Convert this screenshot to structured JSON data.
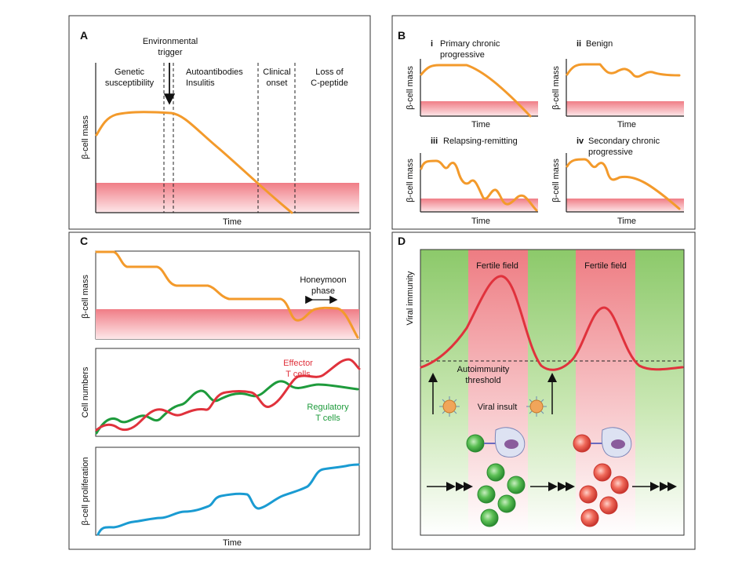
{
  "panelA": {
    "letter": "A",
    "trigger": [
      "Environmental",
      "trigger"
    ],
    "stage1": [
      "Genetic",
      "susceptibility"
    ],
    "stage2": [
      "Autoantibodies",
      "Insulitis"
    ],
    "stage3": [
      "Clinical",
      "onset"
    ],
    "stage4": [
      "Loss of",
      "C-peptide"
    ],
    "ylabel": "β-cell mass",
    "xlabel": "Time"
  },
  "panelB": {
    "letter": "B",
    "ylabel": "β-cell mass",
    "xlabel": "Time",
    "subplots": [
      {
        "num": "i",
        "title": [
          "Primary chronic",
          "progressive"
        ]
      },
      {
        "num": "ii",
        "title": [
          "Benign"
        ]
      },
      {
        "num": "iii",
        "title": [
          "Relapsing-remitting"
        ]
      },
      {
        "num": "iv",
        "title": [
          "Secondary chronic",
          "progressive"
        ]
      }
    ]
  },
  "panelC": {
    "letter": "C",
    "top_ylabel": "β-cell mass",
    "honeymoon": [
      "Honeymoon",
      "phase"
    ],
    "mid_ylabel": "Cell numbers",
    "effector": [
      "Effector",
      "T cells"
    ],
    "regulatory": [
      "Regulatory",
      "T cells"
    ],
    "bot_ylabel": "β-cell proliferation",
    "xlabel": "Time"
  },
  "panelD": {
    "letter": "D",
    "ylabel": "Viral immunity",
    "fertile1": "Fertile field",
    "fertile2": "Fertile field",
    "threshold": [
      "Autoimmunity",
      "threshold"
    ],
    "insult": "Viral insult"
  },
  "colors": {
    "beta_cell_curve": "#f39a2b",
    "effector": "#e0323c",
    "regulatory": "#1e9b3c",
    "proliferation": "#1a9bd2",
    "danger_zone": "#f07d86",
    "viral_field": "#8cc96a"
  }
}
